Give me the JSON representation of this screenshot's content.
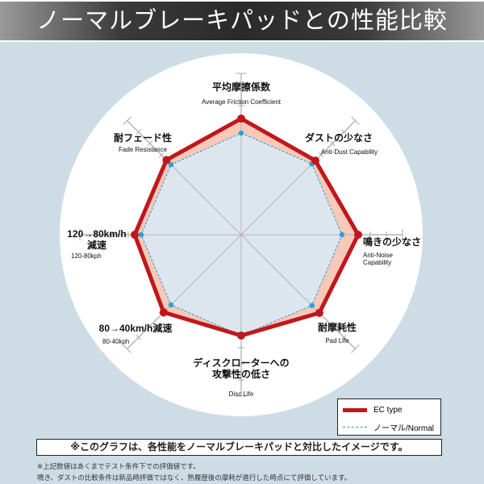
{
  "title": "ノーマルブレーキパッドとの性能比較",
  "chart_data": {
    "type": "radar",
    "range": [
      0,
      10
    ],
    "grid": "axes-with-ticks",
    "legend_placement": "bottom-right",
    "axes": [
      {
        "ja": "平均摩擦係数",
        "en": "Average Friction Coefficient"
      },
      {
        "ja": "ダストの少なさ",
        "en": "Anti-Dust Capability"
      },
      {
        "ja": "鳴きの少なさ",
        "en": "Anti-Noise Capability"
      },
      {
        "ja": "耐摩耗性",
        "en": "Pad Life"
      },
      {
        "ja": "ディスクローターへの攻撃性の低さ",
        "en": "Disc Life"
      },
      {
        "ja": "80→40km/h減速",
        "en": "80-40kph"
      },
      {
        "ja": "120→80km/h減速",
        "en": "120-80kph"
      },
      {
        "ja": "耐フェード性",
        "en": "Fade Resistance"
      }
    ],
    "series": [
      {
        "name": "EC type",
        "color": "#c0171c",
        "values": [
          7.2,
          6.5,
          7.25,
          6.85,
          6.25,
          6.8,
          6.6,
          6.55
        ]
      },
      {
        "name": "ノーマル/Normal",
        "color": "#3399cc",
        "values": [
          6.3,
          6.2,
          6.25,
          6.2,
          6.25,
          6.15,
          6.2,
          6.15
        ]
      }
    ]
  },
  "note": "※このグラフは、各性能をノーマルブレーキパッドと対比したイメージです。",
  "footnotes": [
    "※上記数値はあくまでテスト条件下での評価値です。",
    "鳴き、ダストの比較条件は新品時評価ではなく、熱履歴後の摩耗が進行した時点にて評価しています。"
  ]
}
